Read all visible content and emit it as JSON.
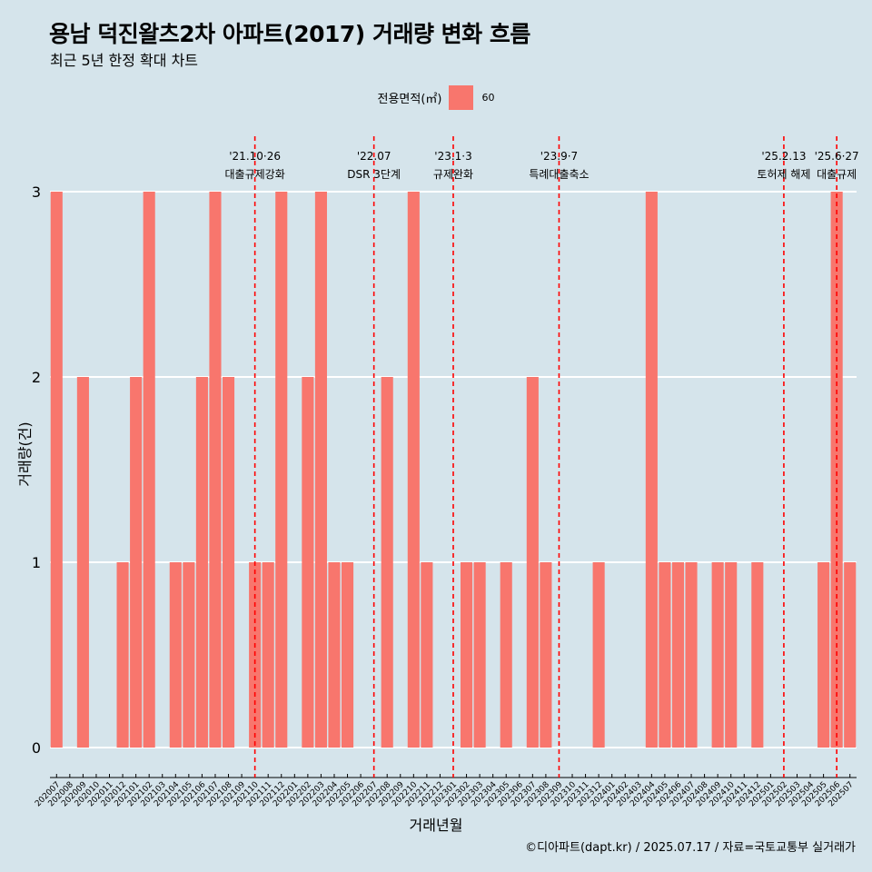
{
  "header": {
    "title": "용남 덕진왈츠2차 아파트(2017) 거래량 변화 흐름",
    "subtitle": "최근 5년 한정 확대 차트"
  },
  "legend": {
    "title": "전용면적(㎡)",
    "label": "60",
    "color": "#f8766d"
  },
  "caption": "©디아파트(dapt.kr) / 2025.07.17 / 자료=국토교통부 실거래가",
  "chart_data": {
    "type": "bar",
    "xlabel": "거래년월",
    "ylabel": "거래량(건)",
    "ylim": [
      0,
      3
    ],
    "yticks": [
      0,
      1,
      2,
      3
    ],
    "grid": "horizontal major lines only",
    "bar_color": "#f8766d",
    "categories": [
      "202007",
      "202008",
      "202009",
      "202010",
      "202011",
      "202012",
      "202101",
      "202102",
      "202103",
      "202104",
      "202105",
      "202106",
      "202107",
      "202108",
      "202109",
      "202110",
      "202111",
      "202112",
      "202201",
      "202202",
      "202203",
      "202204",
      "202205",
      "202206",
      "202207",
      "202208",
      "202209",
      "202210",
      "202211",
      "202212",
      "202301",
      "202302",
      "202303",
      "202304",
      "202305",
      "202306",
      "202307",
      "202308",
      "202309",
      "202310",
      "202311",
      "202312",
      "202401",
      "202402",
      "202403",
      "202404",
      "202405",
      "202406",
      "202407",
      "202408",
      "202409",
      "202410",
      "202411",
      "202412",
      "202501",
      "202502",
      "202503",
      "202504",
      "202505",
      "202506",
      "202507"
    ],
    "series": [
      {
        "name": "60",
        "values": [
          3,
          0,
          2,
          0,
          0,
          1,
          2,
          3,
          0,
          1,
          1,
          2,
          3,
          2,
          0,
          1,
          1,
          3,
          0,
          2,
          3,
          1,
          1,
          0,
          0,
          2,
          0,
          3,
          1,
          0,
          0,
          1,
          1,
          0,
          1,
          0,
          2,
          1,
          0,
          0,
          0,
          1,
          0,
          0,
          0,
          3,
          1,
          1,
          1,
          0,
          1,
          1,
          0,
          1,
          0,
          0,
          0,
          0,
          1,
          3,
          1
        ]
      }
    ],
    "annotations": [
      {
        "x": "202110",
        "date": "'21.10·26",
        "label": "대출규제강화"
      },
      {
        "x": "202207",
        "date": "'22.07",
        "label": "DSR 3단계"
      },
      {
        "x": "202301",
        "date": "'23.1·3",
        "label": "규제완화"
      },
      {
        "x": "202309",
        "date": "'23.9·7",
        "label": "특례대출축소"
      },
      {
        "x": "202502",
        "date": "'25.2.13",
        "label": "토허제 해제"
      },
      {
        "x": "202506",
        "date": "'25.6·27",
        "label": "대출규제"
      }
    ],
    "annotation_color": "#ff0000"
  }
}
